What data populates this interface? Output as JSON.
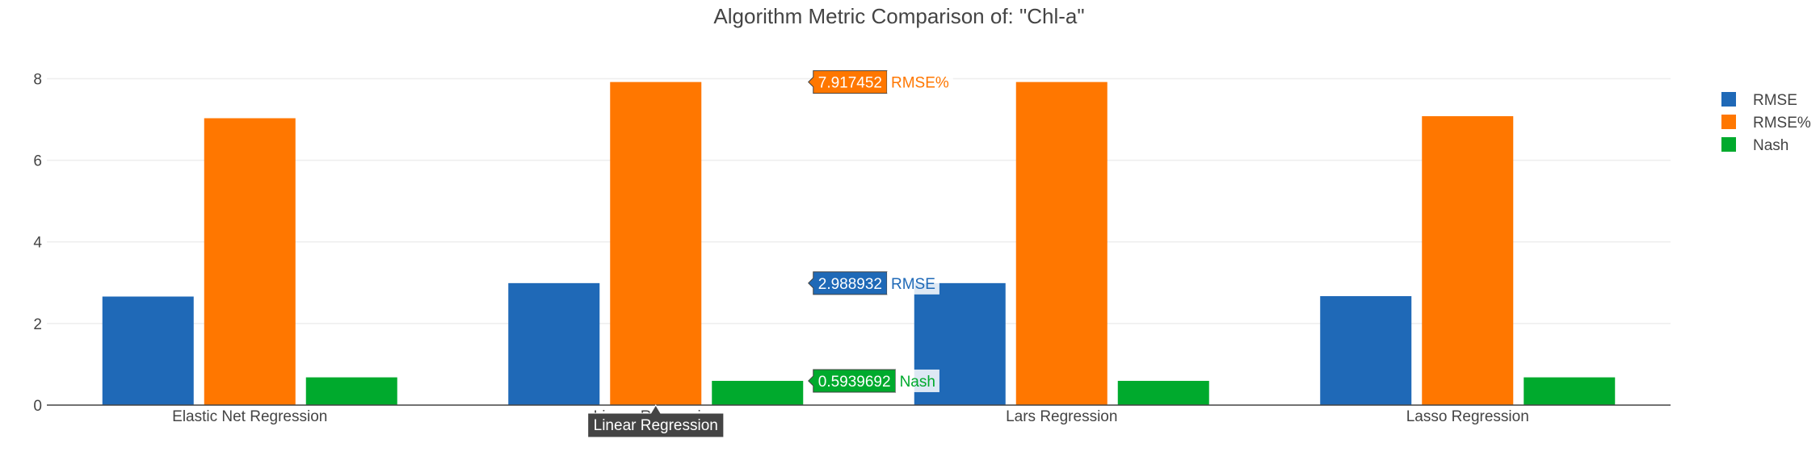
{
  "chart_data": {
    "type": "bar",
    "title": "Algorithm Metric Comparison of: \"Chl-a\"",
    "categories": [
      "Elastic Net Regression",
      "Linear Regression",
      "Lars Regression",
      "Lasso Regression"
    ],
    "series": [
      {
        "name": "RMSE",
        "color": "#1f69b7",
        "values": [
          2.66,
          2.988932,
          2.988932,
          2.67
        ]
      },
      {
        "name": "RMSE%",
        "color": "#ff7700",
        "values": [
          7.03,
          7.917452,
          7.917452,
          7.08
        ]
      },
      {
        "name": "Nash",
        "color": "#00aa2d",
        "values": [
          0.68,
          0.5939692,
          0.5939692,
          0.68
        ]
      }
    ],
    "ylim": [
      0,
      8.8
    ],
    "yticks": [
      0,
      2,
      4,
      6,
      8
    ],
    "legend_position": "top-right",
    "grid": true,
    "hover": {
      "category": "Linear Regression",
      "labels": [
        {
          "series": "RMSE%",
          "value": "7.917452",
          "name": "RMSE%"
        },
        {
          "series": "RMSE",
          "value": "2.988932",
          "name": "RMSE"
        },
        {
          "series": "Nash",
          "value": "0.5939692",
          "name": "Nash"
        }
      ]
    }
  }
}
